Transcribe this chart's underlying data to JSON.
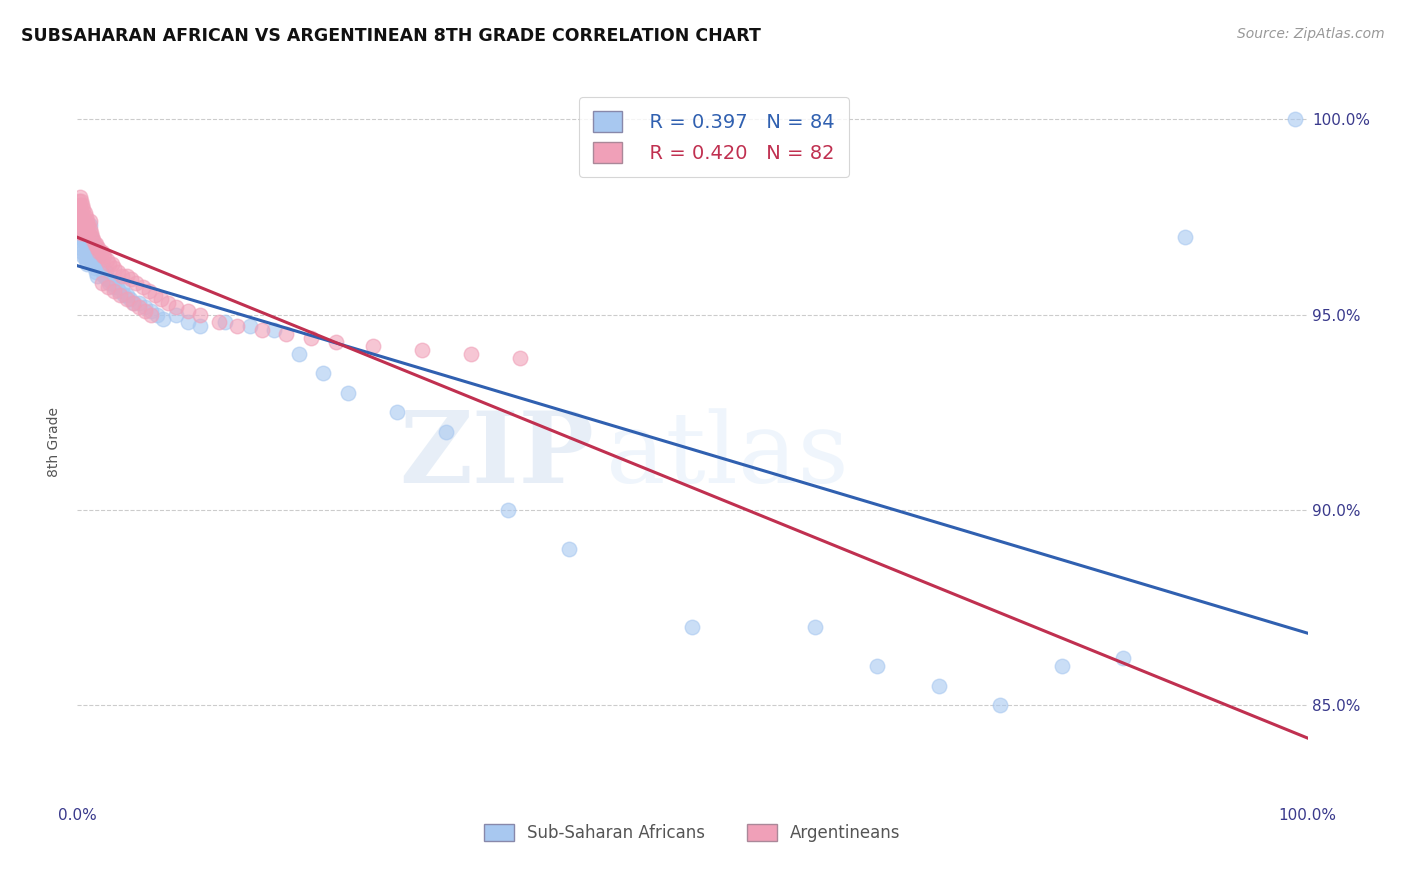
{
  "title": "SUBSAHARAN AFRICAN VS ARGENTINEAN 8TH GRADE CORRELATION CHART",
  "source": "Source: ZipAtlas.com",
  "ylabel": "8th Grade",
  "legend_label_blue": "Sub-Saharan Africans",
  "legend_label_pink": "Argentineans",
  "legend_r_blue": "R = 0.397",
  "legend_n_blue": "N = 84",
  "legend_r_pink": "R = 0.420",
  "legend_n_pink": "N = 82",
  "blue_color": "#a8c8f0",
  "pink_color": "#f0a0b8",
  "blue_line_color": "#3060b0",
  "pink_line_color": "#c03050",
  "watermark_zip": "ZIP",
  "watermark_atlas": "atlas",
  "blue_scatter_x": [
    0.001,
    0.002,
    0.002,
    0.003,
    0.003,
    0.003,
    0.004,
    0.004,
    0.004,
    0.005,
    0.005,
    0.005,
    0.006,
    0.006,
    0.006,
    0.007,
    0.007,
    0.007,
    0.008,
    0.008,
    0.008,
    0.009,
    0.009,
    0.01,
    0.01,
    0.01,
    0.011,
    0.011,
    0.012,
    0.012,
    0.013,
    0.013,
    0.014,
    0.014,
    0.015,
    0.015,
    0.016,
    0.016,
    0.017,
    0.018,
    0.019,
    0.02,
    0.021,
    0.022,
    0.023,
    0.024,
    0.025,
    0.026,
    0.028,
    0.03,
    0.032,
    0.034,
    0.036,
    0.038,
    0.04,
    0.043,
    0.046,
    0.05,
    0.055,
    0.06,
    0.065,
    0.07,
    0.08,
    0.09,
    0.1,
    0.12,
    0.14,
    0.16,
    0.18,
    0.2,
    0.22,
    0.26,
    0.3,
    0.35,
    0.4,
    0.5,
    0.6,
    0.65,
    0.7,
    0.75,
    0.8,
    0.85,
    0.9,
    0.99
  ],
  "blue_scatter_y": [
    0.97,
    0.972,
    0.968,
    0.975,
    0.971,
    0.967,
    0.974,
    0.97,
    0.966,
    0.973,
    0.969,
    0.965,
    0.973,
    0.969,
    0.965,
    0.972,
    0.968,
    0.964,
    0.971,
    0.967,
    0.963,
    0.97,
    0.966,
    0.973,
    0.969,
    0.964,
    0.97,
    0.965,
    0.969,
    0.964,
    0.968,
    0.963,
    0.967,
    0.962,
    0.966,
    0.961,
    0.965,
    0.96,
    0.964,
    0.963,
    0.962,
    0.963,
    0.961,
    0.96,
    0.961,
    0.959,
    0.959,
    0.958,
    0.958,
    0.957,
    0.957,
    0.956,
    0.957,
    0.955,
    0.955,
    0.954,
    0.953,
    0.953,
    0.952,
    0.951,
    0.95,
    0.949,
    0.95,
    0.948,
    0.947,
    0.948,
    0.947,
    0.946,
    0.94,
    0.935,
    0.93,
    0.925,
    0.92,
    0.9,
    0.89,
    0.87,
    0.87,
    0.86,
    0.855,
    0.85,
    0.86,
    0.862,
    0.97,
    1.0
  ],
  "pink_scatter_x": [
    0.001,
    0.001,
    0.001,
    0.001,
    0.002,
    0.002,
    0.002,
    0.002,
    0.002,
    0.003,
    0.003,
    0.003,
    0.003,
    0.003,
    0.004,
    0.004,
    0.004,
    0.004,
    0.005,
    0.005,
    0.005,
    0.005,
    0.006,
    0.006,
    0.006,
    0.007,
    0.007,
    0.007,
    0.008,
    0.008,
    0.009,
    0.009,
    0.01,
    0.01,
    0.011,
    0.012,
    0.013,
    0.014,
    0.015,
    0.016,
    0.017,
    0.018,
    0.019,
    0.02,
    0.021,
    0.022,
    0.024,
    0.026,
    0.028,
    0.03,
    0.033,
    0.036,
    0.04,
    0.044,
    0.048,
    0.053,
    0.058,
    0.063,
    0.068,
    0.074,
    0.08,
    0.09,
    0.1,
    0.115,
    0.13,
    0.15,
    0.17,
    0.19,
    0.21,
    0.24,
    0.28,
    0.32,
    0.36,
    0.02,
    0.025,
    0.03,
    0.035,
    0.04,
    0.045,
    0.05,
    0.055,
    0.06
  ],
  "pink_scatter_y": [
    0.979,
    0.977,
    0.975,
    0.973,
    0.98,
    0.978,
    0.976,
    0.974,
    0.972,
    0.979,
    0.977,
    0.975,
    0.973,
    0.971,
    0.978,
    0.976,
    0.974,
    0.972,
    0.977,
    0.975,
    0.973,
    0.971,
    0.976,
    0.974,
    0.972,
    0.975,
    0.973,
    0.971,
    0.974,
    0.972,
    0.973,
    0.971,
    0.974,
    0.972,
    0.971,
    0.97,
    0.969,
    0.968,
    0.968,
    0.967,
    0.967,
    0.966,
    0.966,
    0.966,
    0.965,
    0.965,
    0.964,
    0.963,
    0.963,
    0.962,
    0.961,
    0.96,
    0.96,
    0.959,
    0.958,
    0.957,
    0.956,
    0.955,
    0.954,
    0.953,
    0.952,
    0.951,
    0.95,
    0.948,
    0.947,
    0.946,
    0.945,
    0.944,
    0.943,
    0.942,
    0.941,
    0.94,
    0.939,
    0.958,
    0.957,
    0.956,
    0.955,
    0.954,
    0.953,
    0.952,
    0.951,
    0.95
  ],
  "xlim": [
    0.0,
    1.0
  ],
  "ylim": [
    0.825,
    1.01
  ],
  "xtick_positions": [
    0.0,
    0.1,
    0.2,
    0.3,
    0.4,
    0.5,
    0.6,
    0.7,
    0.8,
    0.9,
    1.0
  ],
  "ytick_positions": [
    0.85,
    0.9,
    0.95,
    1.0
  ],
  "background_color": "#ffffff",
  "grid_color": "#cccccc"
}
